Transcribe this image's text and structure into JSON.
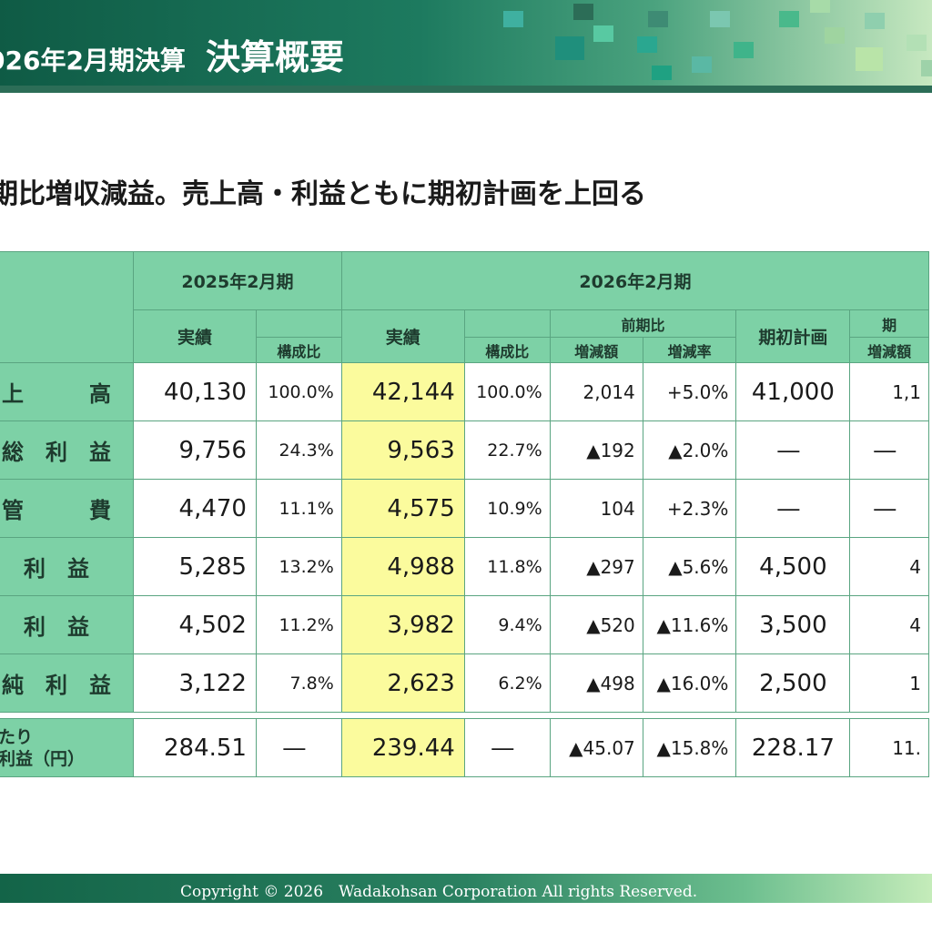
{
  "header": {
    "period": "026年2月期決算",
    "title": "決算概要"
  },
  "subtitle": "期比増収減益。売上高・利益ともに期初計画を上回る",
  "table": {
    "fy2025": "2025年2月期",
    "fy2026": "2026年2月期",
    "actual": "実績",
    "ratio": "構成比",
    "yoy": "前期比",
    "change_amount": "増減額",
    "change_rate": "増減率",
    "plan": "期初計画",
    "plan_cut": "期",
    "plan_change_cut": "増減額",
    "rows": [
      {
        "label": "上　高",
        "a2025": "40,130",
        "r2025": "100.0%",
        "a2026": "42,144",
        "r2026": "100.0%",
        "diff": "2,014",
        "rate": "+5.0%",
        "plan": "41,000",
        "pdiff": "1,1"
      },
      {
        "label": "総利益",
        "a2025": "9,756",
        "r2025": "24.3%",
        "a2026": "9,563",
        "r2026": "22.7%",
        "diff": "▲192",
        "rate": "▲2.0%",
        "plan": "―",
        "pdiff": "―"
      },
      {
        "label": "管　費",
        "a2025": "4,470",
        "r2025": "11.1%",
        "a2026": "4,575",
        "r2026": "10.9%",
        "diff": "104",
        "rate": "+2.3%",
        "plan": "―",
        "pdiff": "―"
      },
      {
        "label": "利益",
        "a2025": "5,285",
        "r2025": "13.2%",
        "a2026": "4,988",
        "r2026": "11.8%",
        "diff": "▲297",
        "rate": "▲5.6%",
        "plan": "4,500",
        "pdiff": "4"
      },
      {
        "label": "利益",
        "a2025": "4,502",
        "r2025": "11.2%",
        "a2026": "3,982",
        "r2026": "9.4%",
        "diff": "▲520",
        "rate": "▲11.6%",
        "plan": "3,500",
        "pdiff": "4"
      },
      {
        "label": "純利益",
        "a2025": "3,122",
        "r2025": "7.8%",
        "a2026": "2,623",
        "r2026": "6.2%",
        "diff": "▲498",
        "rate": "▲16.0%",
        "plan": "2,500",
        "pdiff": "1"
      }
    ],
    "eps": {
      "label_line1": "たり",
      "label_line2": "利益（円）",
      "a2025": "284.51",
      "r2025": "―",
      "a2026": "239.44",
      "r2026": "―",
      "diff": "▲45.07",
      "rate": "▲15.8%",
      "plan": "228.17",
      "pdiff": "11."
    }
  },
  "footer": "Copyright © 2026　Wadakohsan Corporation All rights Reserved."
}
